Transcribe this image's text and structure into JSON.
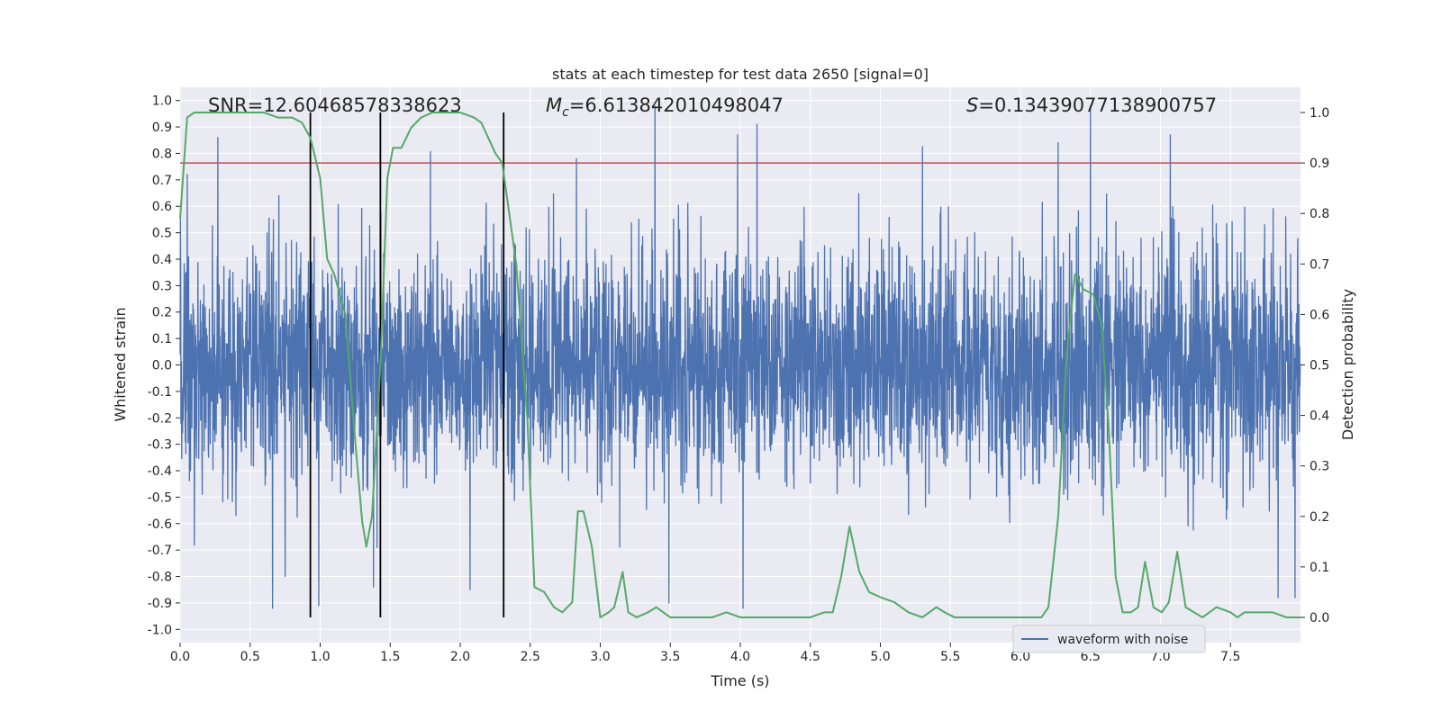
{
  "chart_data": {
    "type": "line",
    "title": "stats at each timestep for test data 2650 [signal=0]",
    "xlabel": "Time (s)",
    "ylabel_left": "Whitened strain",
    "ylabel_right": "Detection probability",
    "xlim": [
      0.0,
      8.0
    ],
    "ylim_left": [
      -1.05,
      1.05
    ],
    "ylim_right": [
      -0.05,
      1.05
    ],
    "x_ticks": [
      "0.0",
      "0.5",
      "1.0",
      "1.5",
      "2.0",
      "2.5",
      "3.0",
      "3.5",
      "4.0",
      "4.5",
      "5.0",
      "5.5",
      "6.0",
      "6.5",
      "7.0",
      "7.5"
    ],
    "y_ticks_left": [
      "1.0",
      "0.9",
      "0.8",
      "0.7",
      "0.6",
      "0.5",
      "0.4",
      "0.3",
      "0.2",
      "0.1",
      "0.0",
      "-0.1",
      "-0.2",
      "-0.3",
      "-0.4",
      "-0.5",
      "-0.6",
      "-0.7",
      "-0.8",
      "-0.9",
      "-1.0"
    ],
    "y_ticks_right": [
      "1.0",
      "0.9",
      "0.8",
      "0.7",
      "0.6",
      "0.5",
      "0.4",
      "0.3",
      "0.2",
      "0.1",
      "0.0"
    ],
    "grid": true,
    "legend": {
      "position": "bottom-right",
      "entries": [
        "waveform with noise"
      ]
    },
    "annotations": {
      "snr": "SNR=12.60468578338623",
      "mc_symbol": "M",
      "mc_sub": "c",
      "mc_value": "=6.613842010498047",
      "s_symbol": "S",
      "s_value": "=0.13439077138900757"
    },
    "threshold_line": {
      "axis": "right",
      "y": 0.9,
      "color": "#c44e52"
    },
    "vertical_markers_s": [
      0.93,
      1.43,
      2.31
    ],
    "series": [
      {
        "name": "waveform with noise",
        "axis": "left",
        "color": "#4c72b0",
        "sample_rate_hz": 512,
        "envelope_typical": 0.45,
        "spikes": [
          {
            "t": 0.05,
            "v": 0.72
          },
          {
            "t": 0.27,
            "v": 0.86
          },
          {
            "t": 0.66,
            "v": -0.92
          },
          {
            "t": 0.75,
            "v": -0.8
          },
          {
            "t": 0.99,
            "v": -0.91
          },
          {
            "t": 1.38,
            "v": -0.84
          },
          {
            "t": 2.07,
            "v": -0.85
          },
          {
            "t": 2.83,
            "v": 0.78
          },
          {
            "t": 3.39,
            "v": 1.0
          },
          {
            "t": 3.49,
            "v": -0.9
          },
          {
            "t": 3.98,
            "v": 0.87
          },
          {
            "t": 4.02,
            "v": -0.92
          },
          {
            "t": 4.12,
            "v": 0.91
          },
          {
            "t": 6.27,
            "v": 0.84
          },
          {
            "t": 6.5,
            "v": 1.0
          },
          {
            "t": 7.07,
            "v": 0.87
          },
          {
            "t": 7.84,
            "v": -0.88
          },
          {
            "t": 7.96,
            "v": -0.88
          }
        ]
      },
      {
        "name": "Detection probability",
        "axis": "right",
        "color": "#55a868",
        "x": [
          0.0,
          0.05,
          0.1,
          0.2,
          0.3,
          0.4,
          0.5,
          0.6,
          0.7,
          0.8,
          0.87,
          0.93,
          1.0,
          1.05,
          1.1,
          1.18,
          1.25,
          1.3,
          1.33,
          1.37,
          1.43,
          1.48,
          1.52,
          1.58,
          1.65,
          1.72,
          1.8,
          1.9,
          2.0,
          2.1,
          2.15,
          2.2,
          2.25,
          2.3,
          2.4,
          2.48,
          2.53,
          2.6,
          2.67,
          2.73,
          2.8,
          2.84,
          2.88,
          2.94,
          3.0,
          3.06,
          3.1,
          3.16,
          3.2,
          3.26,
          3.34,
          3.4,
          3.5,
          3.6,
          3.7,
          3.8,
          3.9,
          4.0,
          4.1,
          4.2,
          4.3,
          4.4,
          4.5,
          4.6,
          4.66,
          4.72,
          4.78,
          4.85,
          4.92,
          5.0,
          5.1,
          5.2,
          5.3,
          5.4,
          5.46,
          5.53,
          5.6,
          5.7,
          5.8,
          5.9,
          6.0,
          6.1,
          6.15,
          6.2,
          6.27,
          6.33,
          6.39,
          6.45,
          6.52,
          6.58,
          6.63,
          6.68,
          6.73,
          6.79,
          6.84,
          6.89,
          6.95,
          7.01,
          7.06,
          7.12,
          7.18,
          7.24,
          7.3,
          7.4,
          7.5,
          7.55,
          7.6,
          7.7,
          7.8,
          7.9,
          8.0
        ],
        "y": [
          0.79,
          0.99,
          1.0,
          1.0,
          1.0,
          1.0,
          1.0,
          1.0,
          0.99,
          0.99,
          0.98,
          0.95,
          0.87,
          0.71,
          0.68,
          0.6,
          0.35,
          0.19,
          0.14,
          0.2,
          0.5,
          0.87,
          0.93,
          0.93,
          0.97,
          0.99,
          1.0,
          1.0,
          1.0,
          0.99,
          0.98,
          0.95,
          0.92,
          0.9,
          0.7,
          0.39,
          0.06,
          0.05,
          0.02,
          0.01,
          0.03,
          0.21,
          0.21,
          0.14,
          0.0,
          0.01,
          0.02,
          0.09,
          0.01,
          0.0,
          0.01,
          0.02,
          0.0,
          0.0,
          0.0,
          0.0,
          0.01,
          0.0,
          0.0,
          0.0,
          0.0,
          0.0,
          0.0,
          0.01,
          0.01,
          0.08,
          0.18,
          0.09,
          0.05,
          0.04,
          0.03,
          0.01,
          0.0,
          0.02,
          0.01,
          0.0,
          0.0,
          0.0,
          0.0,
          0.0,
          0.0,
          0.0,
          0.0,
          0.02,
          0.2,
          0.52,
          0.68,
          0.65,
          0.64,
          0.58,
          0.38,
          0.08,
          0.01,
          0.01,
          0.02,
          0.11,
          0.02,
          0.01,
          0.03,
          0.13,
          0.02,
          0.01,
          0.0,
          0.02,
          0.01,
          0.0,
          0.01,
          0.01,
          0.01,
          0.0,
          0.0
        ]
      }
    ]
  }
}
